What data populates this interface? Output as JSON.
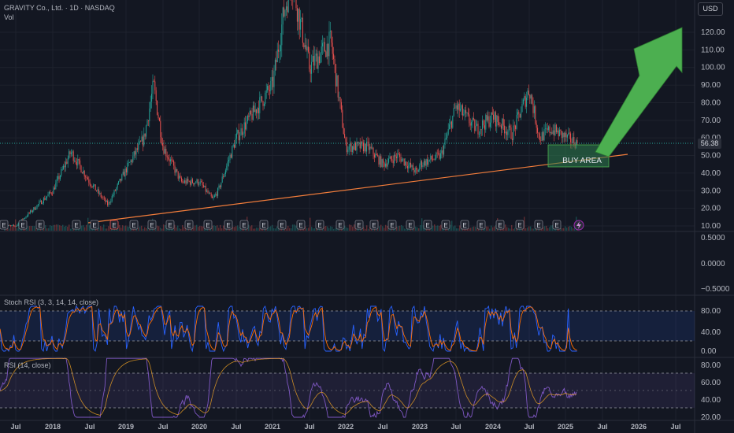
{
  "header": {
    "symbol_line": "GRAVITY Co., Ltd. · 1D · NASDAQ",
    "volume_label": "Vol"
  },
  "currency_button": "USD",
  "last_price_tag": "56.38",
  "annotation": {
    "buy_area": "BUY AREA"
  },
  "indicators": {
    "stoch_label": "Stoch RSI (3, 3, 14, 14, close)",
    "rsi_label": "RSI (14, close)"
  },
  "earnings_marker": "E",
  "colors": {
    "background": "#131722",
    "trendline": "#f37d3b",
    "arrow": "#4caf50",
    "buy_area": "#2e7d4f",
    "rsi": "#7e57c2",
    "stoch_k": "#2962ff",
    "stoch_d": "#ff6d00",
    "candle_up": "#26a69a",
    "candle_down": "#ef5350"
  },
  "chart_data": [
    {
      "type": "line",
      "panel": "price",
      "x": [
        "2017-07",
        "2018-01",
        "2018-04",
        "2018-07",
        "2018-10",
        "2019-01",
        "2019-04",
        "2019-06",
        "2019-07",
        "2019-10",
        "2020-01",
        "2020-04",
        "2020-07",
        "2020-10",
        "2021-01",
        "2021-03",
        "2021-05",
        "2021-07",
        "2021-09",
        "2021-11",
        "2022-01",
        "2022-04",
        "2022-07",
        "2022-10",
        "2023-01",
        "2023-04",
        "2023-07",
        "2023-10",
        "2024-01",
        "2024-04",
        "2024-07",
        "2024-09",
        "2024-11",
        "2025-01",
        "2025-03"
      ],
      "series": [
        {
          "values": [
            10,
            30,
            52,
            35,
            22,
            42,
            60,
            90,
            55,
            35,
            35,
            30,
            25,
            60,
            90,
            130,
            150,
            100,
            115,
            55,
            55,
            45,
            50,
            45,
            40,
            50,
            78,
            65,
            72,
            62,
            88,
            60,
            65,
            60,
            56.38
          ]
        }
      ],
      "ylim": [
        8,
        135
      ],
      "yticks": [
        "10.00",
        "20.00",
        "30.00",
        "40.00",
        "50.00",
        "60.00",
        "70.00",
        "80.00",
        "90.00",
        "100.00",
        "110.00",
        "120.00"
      ],
      "xticks": [
        "Jul",
        "2018",
        "Jul",
        "2019",
        "Jul",
        "2020",
        "Jul",
        "2021",
        "Jul",
        "2022",
        "Jul",
        "2023",
        "Jul",
        "2024",
        "Jul",
        "2025",
        "Jul",
        "2026",
        "Jul"
      ],
      "last_value": 56.38
    },
    {
      "type": "line",
      "panel": "empty-oscillator",
      "yticks": [
        "0.5000",
        "0.0000",
        "−0.5000"
      ]
    },
    {
      "type": "line",
      "panel": "stoch_rsi",
      "yticks": [
        "80.00",
        "40.00",
        "0.00"
      ],
      "bands": [
        20,
        80
      ],
      "ylim": [
        0,
        100
      ]
    },
    {
      "type": "line",
      "panel": "rsi",
      "yticks": [
        "80.00",
        "60.00",
        "40.00",
        "20.00"
      ],
      "bands": [
        30,
        70
      ],
      "ylim": [
        15,
        90
      ]
    }
  ]
}
